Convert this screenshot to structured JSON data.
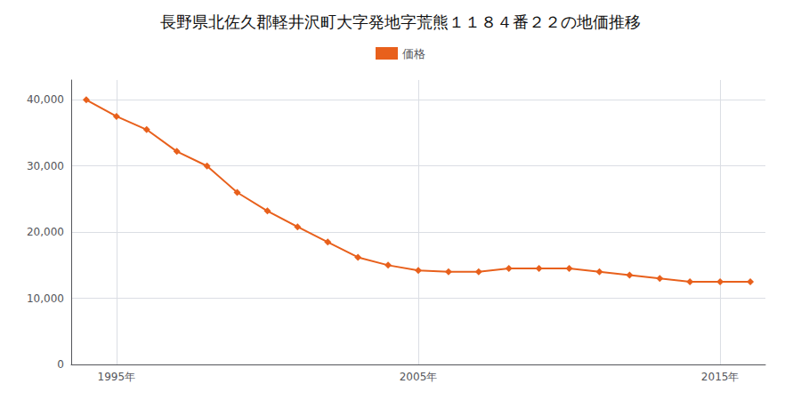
{
  "chart_data": {
    "type": "line",
    "title": "長野県北佐久郡軽井沢町大字発地字荒熊１１８４番２２の地価推移",
    "x": [
      1994,
      1995,
      1996,
      1997,
      1998,
      1999,
      2000,
      2001,
      2002,
      2003,
      2004,
      2005,
      2006,
      2007,
      2008,
      2009,
      2010,
      2011,
      2012,
      2013,
      2014,
      2015,
      2016
    ],
    "series": [
      {
        "name": "価格",
        "color": "#e8601c",
        "marker": "diamond",
        "values": [
          40000,
          37500,
          35500,
          32200,
          30000,
          26000,
          23200,
          20800,
          18500,
          16200,
          15000,
          14200,
          14000,
          14000,
          14500,
          14500,
          14500,
          14000,
          13500,
          13000,
          12500,
          12500,
          12500
        ]
      }
    ],
    "xlim": [
      1993.5,
      2016.5
    ],
    "xticks": [
      {
        "value": 1995,
        "label": "1995年"
      },
      {
        "value": 2005,
        "label": "2005年"
      },
      {
        "value": 2015,
        "label": "2015年"
      }
    ],
    "ylim": [
      0,
      43000
    ],
    "yticks": [
      0,
      {
        "value": 10000,
        "label": "10,000"
      },
      {
        "value": 20000,
        "label": "20,000"
      },
      {
        "value": 30000,
        "label": "30,000"
      },
      {
        "value": 40000,
        "label": "40,000"
      }
    ],
    "grid": true,
    "legend": "top"
  }
}
